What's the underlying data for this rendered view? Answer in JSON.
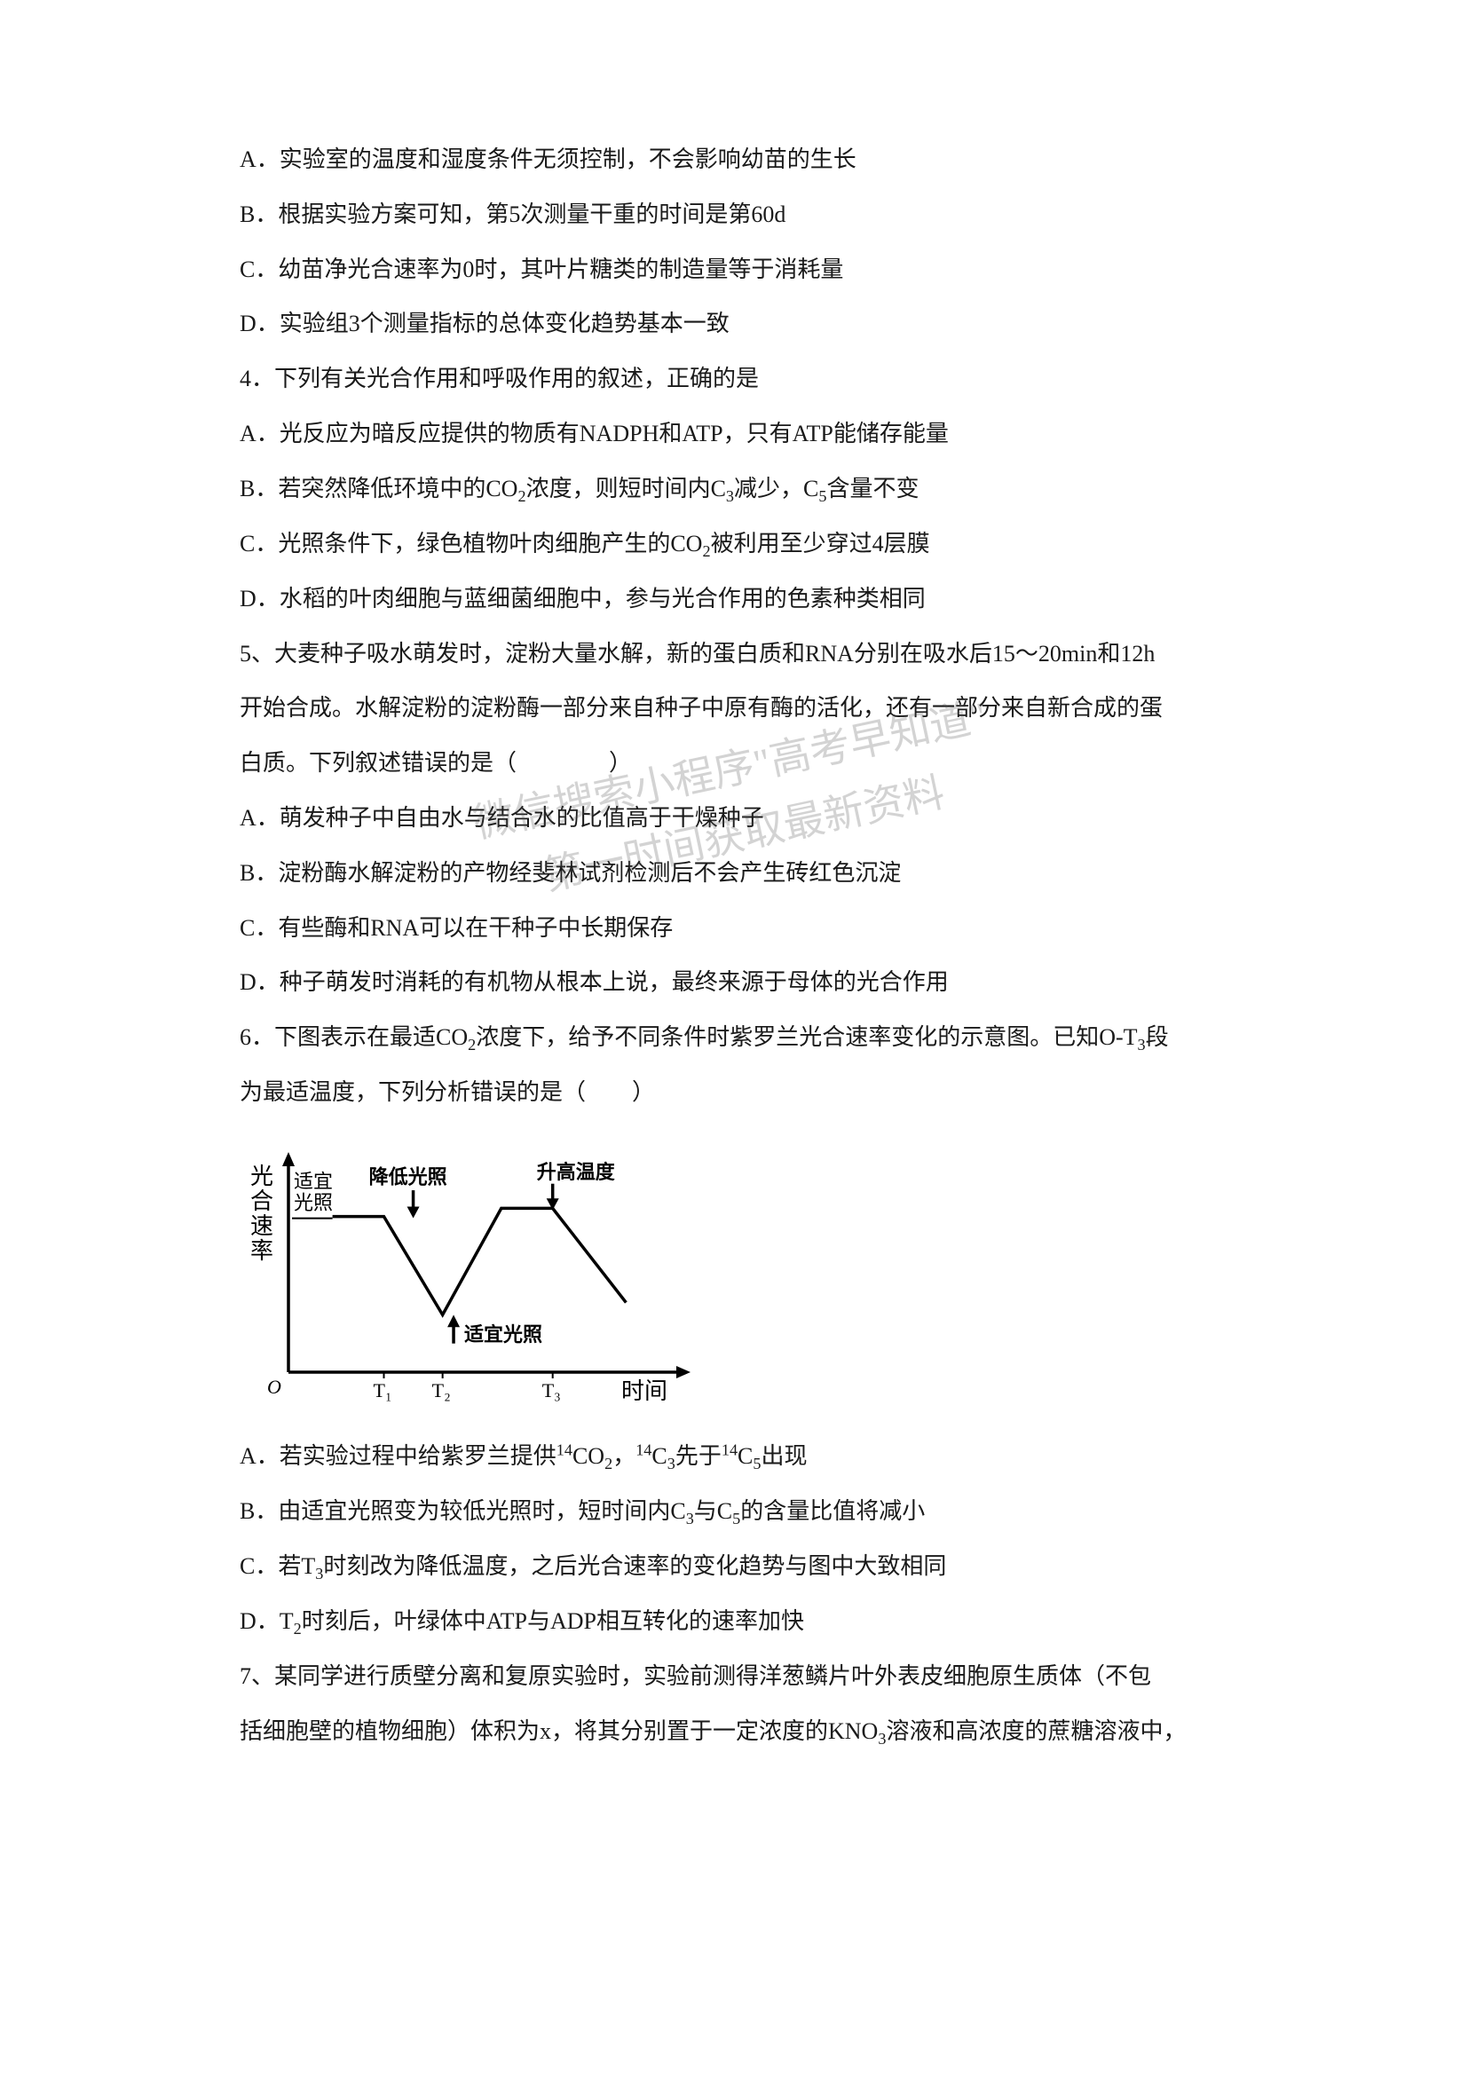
{
  "lines": {
    "l1": "A．实验室的温度和湿度条件无须控制，不会影响幼苗的生长",
    "l2": "B．根据实验方案可知，第5次测量干重的时间是第60d",
    "l3": "C．幼苗净光合速率为0时，其叶片糖类的制造量等于消耗量",
    "l4": "D．实验组3个测量指标的总体变化趋势基本一致",
    "l5": "4．下列有关光合作用和呼吸作用的叙述，正确的是",
    "l6": "A．光反应为暗反应提供的物质有NADPH和ATP，只有ATP能储存能量",
    "l7a": "B．若突然降低环境中的CO",
    "l7b": "浓度，则短时间内C",
    "l7c": "减少，C",
    "l7d": "含量不变",
    "l8a": "C．光照条件下，绿色植物叶肉细胞产生的CO",
    "l8b": "被利用至少穿过4层膜",
    "l9": "D．水稻的叶肉细胞与蓝细菌细胞中，参与光合作用的色素种类相同",
    "l10": "5、大麦种子吸水萌发时，淀粉大量水解，新的蛋白质和RNA分别在吸水后15～20min和12h",
    "l11": "开始合成。水解淀粉的淀粉酶一部分来自种子中原有酶的活化，还有一部分来自新合成的蛋",
    "l12": "白质。下列叙述错误的是（　　　　）",
    "l13": "A．萌发种子中自由水与结合水的比值高于干燥种子",
    "l14": "B．淀粉酶水解淀粉的产物经斐林试剂检测后不会产生砖红色沉淀",
    "l15": "C．有些酶和RNA可以在干种子中长期保存",
    "l16": "D．种子萌发时消耗的有机物从根本上说，最终来源于母体的光合作用",
    "l17a": "6．下图表示在最适CO",
    "l17b": "浓度下，给予不同条件时紫罗兰光合速率变化的示意图。已知O-T",
    "l17c": "段",
    "l18": "为最适温度，下列分析错误的是（　　）",
    "l19a": "A．若实验过程中给紫罗兰提供",
    "l19b": "CO",
    "l19c": "，",
    "l19d": "C",
    "l19e": "先于",
    "l19f": "C",
    "l19g": "出现",
    "l20a": "B．由适宜光照变为较低光照时，短时间内C",
    "l20b": "与C",
    "l20c": "的含量比值将减小",
    "l21a": "C．若T",
    "l21b": "时刻改为降低温度，之后光合速率的变化趋势与图中大致相同",
    "l22a": "D．T",
    "l22b": "时刻后，叶绿体中ATP与ADP相互转化的速率加快",
    "l23": "7、某同学进行质壁分离和复原实验时，实验前测得洋葱鳞片叶外表皮细胞原生质体（不包",
    "l24a": "括细胞壁的植物细胞）体积为x，将其分别置于一定浓度的KNO",
    "l24b": "溶液和高浓度的蔗糖溶液中，"
  },
  "subs": {
    "two": "2",
    "three": "3",
    "five": "5",
    "fourteen": "14"
  },
  "watermark": {
    "line1": "微信搜索小程序\"高考早知道\"",
    "line2": "第一时间获取最新资料"
  },
  "chart": {
    "type": "line",
    "ylabel": "光合速率",
    "xlabel": "时间",
    "ylabel_chars": [
      "光",
      "合",
      "速",
      "率"
    ],
    "label_for_low": "降低光照",
    "label_for_hi": "升高温度",
    "label_for_ok1": "适宜光照",
    "label_for_ok2": "适宜光照",
    "xticks": [
      "T₁",
      "T₂",
      "T₃"
    ],
    "origin_label": "O",
    "line_color": "#000000",
    "axis_color": "#000000",
    "text_color": "#000000",
    "background": "#ffffff",
    "line_width": 3.5,
    "font_size": 22,
    "label_font_size": 26,
    "points": [
      {
        "x": 60,
        "y": 70
      },
      {
        "x": 130,
        "y": 70
      },
      {
        "x": 210,
        "y": 190
      },
      {
        "x": 290,
        "y": 60
      },
      {
        "x": 360,
        "y": 60
      },
      {
        "x": 460,
        "y": 175
      }
    ],
    "xtick_x": [
      130,
      210,
      360
    ],
    "arrow_down_1_x": 170,
    "arrow_down_2_x": 360,
    "arrow_up_x": 225,
    "plateau_y": 70,
    "xlim": [
      0,
      520
    ],
    "ylim": [
      0,
      260
    ]
  }
}
